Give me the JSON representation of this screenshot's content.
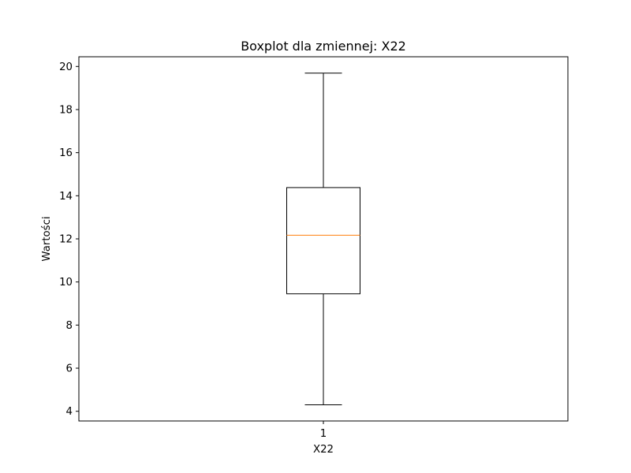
{
  "chart_data": {
    "type": "box",
    "title": "Boxplot dla zmiennej: X22",
    "xlabel": "X22",
    "ylabel": "Wartości",
    "categories": [
      "1"
    ],
    "ylim": [
      3.55,
      20.45
    ],
    "yticks": [
      4,
      6,
      8,
      10,
      12,
      14,
      16,
      18,
      20
    ],
    "series": [
      {
        "whisker_low": 4.3,
        "q1": 9.45,
        "median": 12.17,
        "q3": 14.38,
        "whisker_high": 19.69
      }
    ],
    "grid": false,
    "colors": {
      "box": "#000000",
      "median": "#ff7f0e",
      "frame": "#000000"
    }
  }
}
